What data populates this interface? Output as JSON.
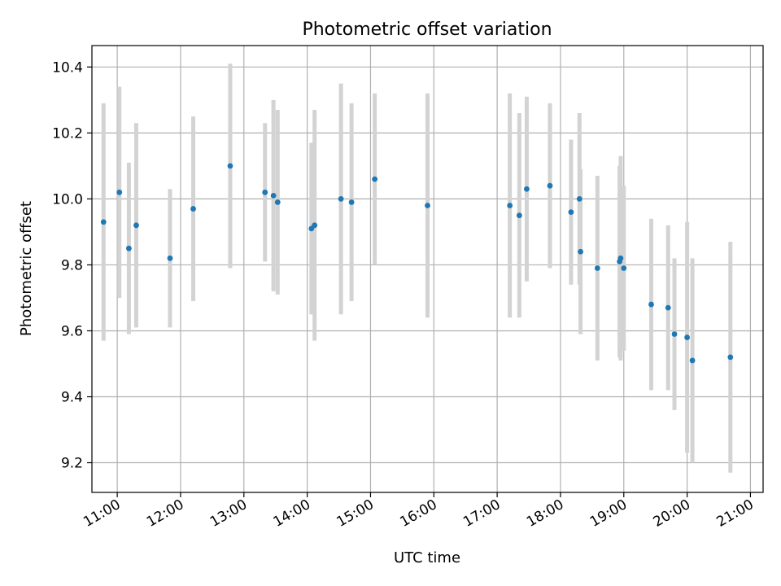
{
  "chart_data": {
    "type": "scatter",
    "title": "Photometric offset variation",
    "xlabel": "UTC time",
    "ylabel": "Photometric offset",
    "grid": true,
    "x_ticks": [
      "11:00",
      "12:00",
      "13:00",
      "14:00",
      "15:00",
      "16:00",
      "17:00",
      "18:00",
      "19:00",
      "20:00",
      "21:00"
    ],
    "y_ticks": [
      "9.2",
      "9.4",
      "9.6",
      "9.8",
      "10.0",
      "10.2",
      "10.4"
    ],
    "xlim": [
      "10:36",
      "21:12"
    ],
    "ylim": [
      9.11,
      10.465
    ],
    "colors": {
      "points": "#1f77b4",
      "errorbars": "#d3d3d3",
      "grid": "#b0b0b0"
    },
    "points": [
      {
        "x": "10:47",
        "y": 9.93,
        "err": 0.36
      },
      {
        "x": "11:02",
        "y": 10.02,
        "err": 0.32
      },
      {
        "x": "11:11",
        "y": 9.85,
        "err": 0.26
      },
      {
        "x": "11:18",
        "y": 9.92,
        "err": 0.31
      },
      {
        "x": "11:50",
        "y": 9.82,
        "err": 0.21
      },
      {
        "x": "12:12",
        "y": 9.97,
        "err": 0.28
      },
      {
        "x": "12:47",
        "y": 10.1,
        "err": 0.31
      },
      {
        "x": "13:20",
        "y": 10.02,
        "err": 0.21
      },
      {
        "x": "13:28",
        "y": 10.01,
        "err": 0.29
      },
      {
        "x": "13:32",
        "y": 9.99,
        "err": 0.28
      },
      {
        "x": "14:04",
        "y": 9.91,
        "err": 0.26
      },
      {
        "x": "14:07",
        "y": 9.92,
        "err": 0.35
      },
      {
        "x": "14:32",
        "y": 10.0,
        "err": 0.35
      },
      {
        "x": "14:42",
        "y": 9.99,
        "err": 0.3
      },
      {
        "x": "15:04",
        "y": 10.06,
        "err": 0.26
      },
      {
        "x": "15:54",
        "y": 9.98,
        "err": 0.34
      },
      {
        "x": "17:12",
        "y": 9.98,
        "err": 0.34
      },
      {
        "x": "17:21",
        "y": 9.95,
        "err": 0.31
      },
      {
        "x": "17:28",
        "y": 10.03,
        "err": 0.28
      },
      {
        "x": "17:50",
        "y": 10.04,
        "err": 0.25
      },
      {
        "x": "18:10",
        "y": 9.96,
        "err": 0.22
      },
      {
        "x": "18:18",
        "y": 10.0,
        "err": 0.26
      },
      {
        "x": "18:19",
        "y": 9.84,
        "err": 0.25
      },
      {
        "x": "18:35",
        "y": 9.79,
        "err": 0.28
      },
      {
        "x": "18:56",
        "y": 9.81,
        "err": 0.29
      },
      {
        "x": "18:57",
        "y": 9.82,
        "err": 0.31
      },
      {
        "x": "19:00",
        "y": 9.79,
        "err": 0.25
      },
      {
        "x": "19:26",
        "y": 9.68,
        "err": 0.26
      },
      {
        "x": "19:42",
        "y": 9.67,
        "err": 0.25
      },
      {
        "x": "19:48",
        "y": 9.59,
        "err": 0.23
      },
      {
        "x": "20:00",
        "y": 9.58,
        "err": 0.35
      },
      {
        "x": "20:05",
        "y": 9.51,
        "err": 0.31
      },
      {
        "x": "20:41",
        "y": 9.52,
        "err": 0.35
      }
    ]
  }
}
